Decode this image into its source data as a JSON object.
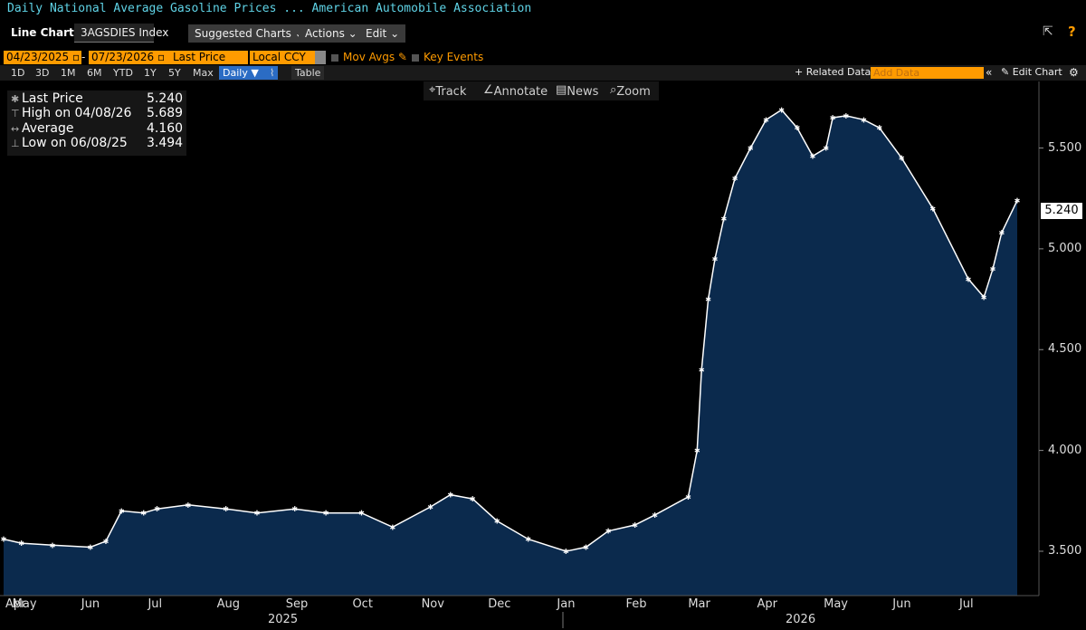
{
  "header": {
    "title": "Daily National Average Gasoline Prices ...  American Automobile Association"
  },
  "toolbar": {
    "chart_type": "Line Chart",
    "ticker": "3AGSDIES Index",
    "suggested": "Suggested Charts",
    "actions": "Actions",
    "edit": "Edit",
    "export_icon": "export-icon",
    "help": "?"
  },
  "settings": {
    "start_date": "04/23/2025",
    "end_date": "07/23/2026",
    "field": "Last Price",
    "currency": "Local CCY",
    "mov_avgs": "Mov Avgs",
    "key_events": "Key Events"
  },
  "ranges": [
    "1D",
    "3D",
    "1M",
    "6M",
    "YTD",
    "1Y",
    "5Y",
    "Max"
  ],
  "period": "Daily",
  "table_tab": "Table",
  "related_data": "+ Related Data",
  "add_data_placeholder": "Add Data",
  "edit_chart": "Edit Chart",
  "tools": {
    "track": "Track",
    "annotate": "Annotate",
    "news": "News",
    "zoom": "Zoom"
  },
  "legend": {
    "last_label": "Last Price",
    "last_value": "5.240",
    "high_label": "High on 04/08/26",
    "high_value": "5.689",
    "avg_label": "Average",
    "avg_value": "4.160",
    "low_label": "Low on 06/08/25",
    "low_value": "3.494"
  },
  "colors": {
    "line": "#ffffff",
    "fill": "#0b2a4d",
    "accent": "#ff9b00",
    "title": "#5fd3e6"
  },
  "chart_data": {
    "type": "area",
    "x": [
      "2025-04-23",
      "2025-05-01",
      "2025-05-15",
      "2025-06-01",
      "2025-06-08",
      "2025-06-15",
      "2025-06-25",
      "2025-07-01",
      "2025-07-15",
      "2025-08-01",
      "2025-08-15",
      "2025-09-01",
      "2025-09-15",
      "2025-10-01",
      "2025-10-15",
      "2025-11-01",
      "2025-11-10",
      "2025-11-20",
      "2025-12-01",
      "2025-12-15",
      "2026-01-01",
      "2026-01-10",
      "2026-01-20",
      "2026-02-01",
      "2026-02-10",
      "2026-02-25",
      "2026-03-01",
      "2026-03-03",
      "2026-03-06",
      "2026-03-09",
      "2026-03-13",
      "2026-03-18",
      "2026-03-25",
      "2026-04-01",
      "2026-04-08",
      "2026-04-15",
      "2026-04-22",
      "2026-04-28",
      "2026-05-01",
      "2026-05-07",
      "2026-05-15",
      "2026-05-22",
      "2026-06-01",
      "2026-06-15",
      "2026-07-01",
      "2026-07-08",
      "2026-07-12",
      "2026-07-16",
      "2026-07-23"
    ],
    "values": [
      3.56,
      3.54,
      3.53,
      3.52,
      3.55,
      3.7,
      3.69,
      3.71,
      3.73,
      3.71,
      3.69,
      3.71,
      3.69,
      3.69,
      3.62,
      3.72,
      3.78,
      3.76,
      3.65,
      3.56,
      3.5,
      3.52,
      3.6,
      3.63,
      3.68,
      3.77,
      4.0,
      4.4,
      4.75,
      4.95,
      5.15,
      5.35,
      5.5,
      5.64,
      5.689,
      5.6,
      5.46,
      5.5,
      5.65,
      5.66,
      5.64,
      5.6,
      5.45,
      5.2,
      4.85,
      4.76,
      4.9,
      5.08,
      5.24
    ],
    "xlabel": "",
    "ylabel": "",
    "ylim": [
      3.28,
      5.83
    ],
    "yticks": [
      "3.500",
      "4.000",
      "4.500",
      "5.000",
      "5.500"
    ],
    "last_value_label": "5.240",
    "month_ticks": [
      {
        "label": "Apr",
        "date": "2025-04-23"
      },
      {
        "label": "May",
        "date": "2025-05-01"
      },
      {
        "label": "Jun",
        "date": "2025-06-01"
      },
      {
        "label": "Jul",
        "date": "2025-07-01"
      },
      {
        "label": "Aug",
        "date": "2025-08-01"
      },
      {
        "label": "Sep",
        "date": "2025-09-01"
      },
      {
        "label": "Oct",
        "date": "2025-10-01"
      },
      {
        "label": "Nov",
        "date": "2025-11-01"
      },
      {
        "label": "Dec",
        "date": "2025-12-01"
      },
      {
        "label": "Jan",
        "date": "2026-01-01"
      },
      {
        "label": "Feb",
        "date": "2026-02-01"
      },
      {
        "label": "Mar",
        "date": "2026-03-01"
      },
      {
        "label": "Apr",
        "date": "2026-04-01"
      },
      {
        "label": "May",
        "date": "2026-05-01"
      },
      {
        "label": "Jun",
        "date": "2026-06-01"
      },
      {
        "label": "Jul",
        "date": "2026-07-01"
      }
    ],
    "year_labels": [
      "2025",
      "2026"
    ],
    "grid": false,
    "legend": "top-left"
  }
}
